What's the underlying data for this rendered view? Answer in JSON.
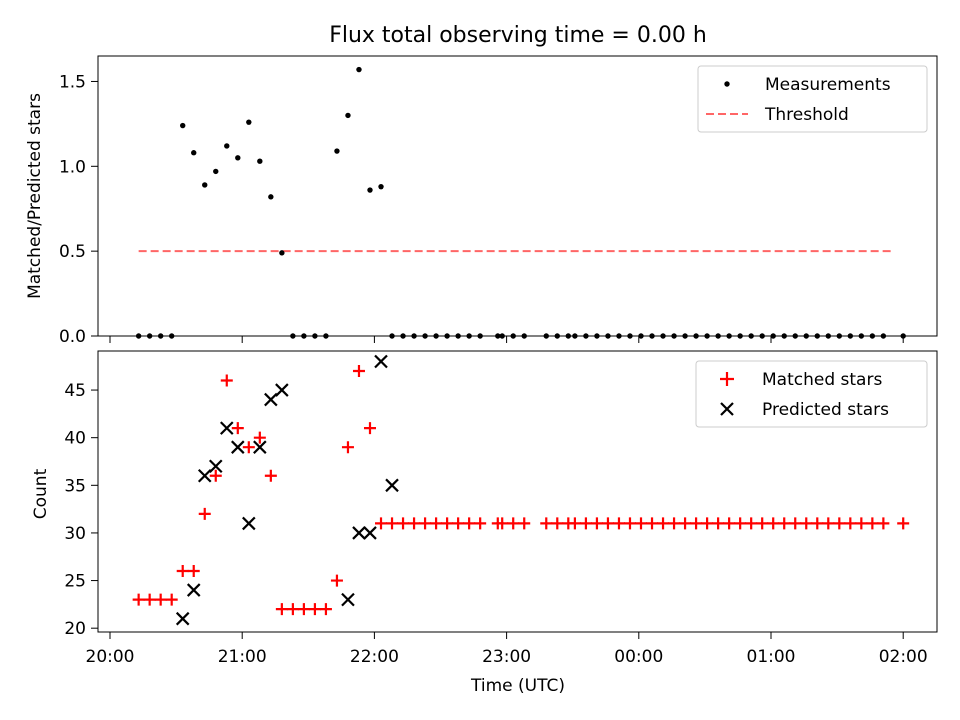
{
  "chart_data": {
    "type": "scatter",
    "title": "Flux total observing time = 0.00 h",
    "xlabel": "Time (UTC)",
    "x_tick_labels": [
      "20:00",
      "21:00",
      "22:00",
      "23:00",
      "00:00",
      "01:00",
      "02:00"
    ],
    "x_ticks": [
      0,
      60,
      120,
      180,
      240,
      300,
      360
    ],
    "panels": [
      {
        "name": "ratio",
        "ylabel": "Matched/Predicted stars",
        "ylim": [
          0,
          1.65
        ],
        "y_ticks": [
          0.0,
          0.5,
          1.0,
          1.5
        ],
        "y_tick_labels": [
          "0.0",
          "0.5",
          "1.0",
          "1.5"
        ],
        "legend": {
          "position": "upper right",
          "entries": [
            "Measurements",
            "Threshold"
          ]
        },
        "series": [
          {
            "name": "Measurements",
            "color": "#000000",
            "marker": "dot",
            "x": [
              13,
              18,
              23,
              28,
              33,
              38,
              43,
              48,
              53,
              58,
              63,
              68,
              73,
              78,
              83,
              88,
              93,
              98,
              103,
              108,
              113,
              118,
              123,
              128,
              133,
              138,
              143,
              148,
              153,
              158,
              163,
              168,
              176,
              178,
              183,
              188,
              198,
              203,
              208,
              211,
              216,
              221,
              226,
              231,
              236,
              241,
              246,
              251,
              256,
              261,
              266,
              271,
              276,
              281,
              286,
              291,
              296,
              301,
              306,
              311,
              316,
              321,
              326,
              331,
              336,
              341,
              346,
              351,
              360
            ],
            "y": [
              0,
              0,
              0,
              0,
              1.24,
              1.08,
              0.89,
              0.97,
              1.12,
              1.05,
              1.26,
              1.03,
              0.82,
              0.49,
              0,
              0,
              0,
              0,
              1.09,
              1.3,
              1.57,
              0.86,
              0.88,
              0,
              0,
              0,
              0,
              0,
              0,
              0,
              0,
              0,
              0,
              0,
              0,
              0,
              0,
              0,
              0,
              0,
              0,
              0,
              0,
              0,
              0,
              0,
              0,
              0,
              0,
              0,
              0,
              0,
              0,
              0,
              0,
              0,
              0,
              0,
              0,
              0,
              0,
              0,
              0,
              0,
              0,
              0,
              0,
              0,
              0
            ]
          },
          {
            "name": "Threshold",
            "color": "#ff6666",
            "style": "dashed",
            "x": [
              13,
              355
            ],
            "y": [
              0.5,
              0.5
            ]
          }
        ]
      },
      {
        "name": "counts",
        "ylabel": "Count",
        "ylim": [
          19.6,
          49.1
        ],
        "y_ticks": [
          20,
          25,
          30,
          35,
          40,
          45
        ],
        "y_tick_labels": [
          "20",
          "25",
          "30",
          "35",
          "40",
          "45"
        ],
        "legend": {
          "position": "upper right",
          "entries": [
            "Matched stars",
            "Predicted stars"
          ]
        },
        "series": [
          {
            "name": "Matched stars",
            "color": "#ff0000",
            "marker": "plus",
            "x": [
              13,
              18,
              23,
              28,
              33,
              38,
              43,
              48,
              53,
              58,
              63,
              68,
              73,
              78,
              83,
              88,
              93,
              98,
              103,
              108,
              113,
              118,
              123,
              128,
              133,
              138,
              143,
              148,
              153,
              158,
              163,
              168,
              176,
              178,
              183,
              188,
              198,
              203,
              208,
              211,
              216,
              221,
              226,
              231,
              236,
              241,
              246,
              251,
              256,
              261,
              266,
              271,
              276,
              281,
              286,
              291,
              296,
              301,
              306,
              311,
              316,
              321,
              326,
              331,
              336,
              341,
              346,
              351,
              360
            ],
            "y": [
              23,
              23,
              23,
              23,
              26,
              26,
              32,
              36,
              46,
              41,
              39,
              40,
              36,
              22,
              22,
              22,
              22,
              22,
              25,
              39,
              47,
              41,
              31,
              31,
              31,
              31,
              31,
              31,
              31,
              31,
              31,
              31,
              31,
              31,
              31,
              31,
              31,
              31,
              31,
              31,
              31,
              31,
              31,
              31,
              31,
              31,
              31,
              31,
              31,
              31,
              31,
              31,
              31,
              31,
              31,
              31,
              31,
              31,
              31,
              31,
              31,
              31,
              31,
              31,
              31,
              31,
              31,
              31,
              31
            ]
          },
          {
            "name": "Predicted stars",
            "color": "#000000",
            "marker": "x",
            "x": [
              33,
              38,
              43,
              48,
              53,
              58,
              63,
              68,
              73,
              78,
              108,
              113,
              118,
              123,
              128
            ],
            "y": [
              21,
              24,
              36,
              37,
              41,
              39,
              31,
              39,
              44,
              45,
              23,
              30,
              30,
              48,
              35
            ]
          }
        ]
      }
    ]
  }
}
